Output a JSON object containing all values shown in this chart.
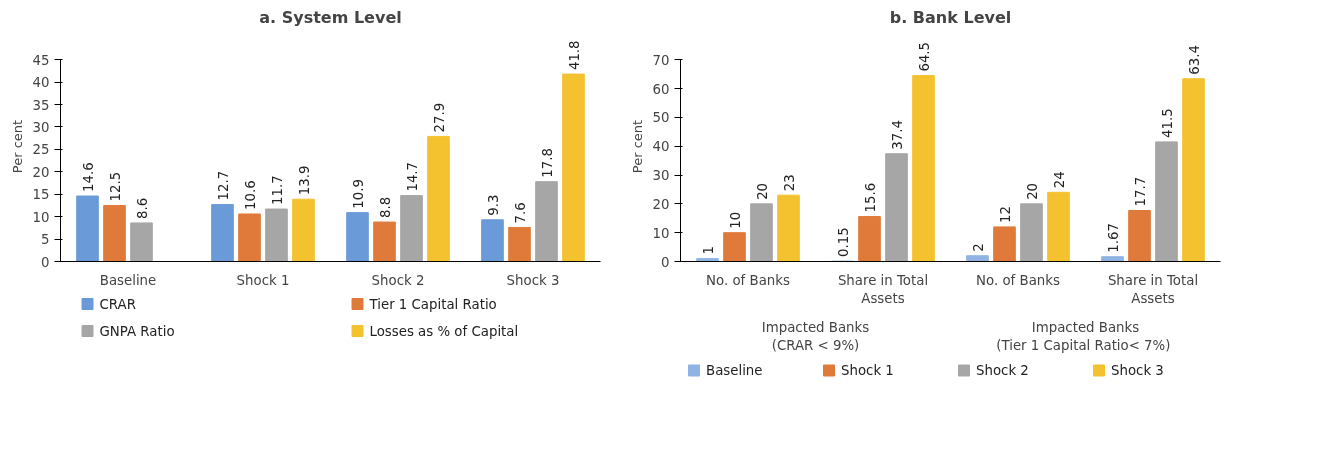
{
  "chart_data": [
    {
      "type": "bar",
      "title": "a. System Level",
      "ylabel": "Per cent",
      "categories": [
        "Baseline",
        "Shock 1",
        "Shock 2",
        "Shock 3"
      ],
      "series": [
        {
          "name": "CRAR",
          "color": "#6a9bd8",
          "values": [
            14.6,
            12.7,
            10.9,
            9.3
          ]
        },
        {
          "name": "Tier 1  Capital Ratio",
          "color": "#e07a3a",
          "values": [
            12.5,
            10.6,
            8.8,
            7.6
          ]
        },
        {
          "name": "GNPA Ratio",
          "color": "#a6a6a6",
          "values": [
            8.6,
            11.7,
            14.7,
            17.8
          ]
        },
        {
          "name": "Losses as % of Capital",
          "color": "#f4c12f",
          "values": [
            null,
            13.9,
            27.9,
            41.8
          ]
        }
      ],
      "ylim": [
        0,
        45
      ],
      "yticks": [
        0,
        5,
        10,
        15,
        20,
        25,
        30,
        35,
        40,
        45
      ],
      "data_labels": true,
      "legend": "bottom",
      "grid": false
    },
    {
      "type": "bar",
      "title": "b. Bank Level",
      "ylabel": "Per cent",
      "categories": [
        "No. of Banks",
        "Share in Total Assets",
        "No. of Banks",
        "Share in Total Assets"
      ],
      "annotations": [
        "Impacted Banks (CRAR < 9%)",
        "Impacted Banks (Tier 1  Capital Ratio< 7%)"
      ],
      "series": [
        {
          "name": "Baseline",
          "color": "#8fb4e3",
          "values": [
            1,
            0.15,
            2,
            1.67
          ]
        },
        {
          "name": "Shock 1",
          "color": "#e07a3a",
          "values": [
            10,
            15.6,
            12,
            17.7
          ]
        },
        {
          "name": "Shock 2",
          "color": "#a6a6a6",
          "values": [
            20,
            37.4,
            20,
            41.5
          ]
        },
        {
          "name": "Shock 3",
          "color": "#f4c12f",
          "values": [
            23,
            64.5,
            24,
            63.4
          ]
        }
      ],
      "ylim": [
        0,
        70
      ],
      "yticks": [
        0,
        10,
        20,
        30,
        40,
        50,
        60,
        70
      ],
      "data_labels": true,
      "legend": "bottom",
      "grid": false
    }
  ]
}
